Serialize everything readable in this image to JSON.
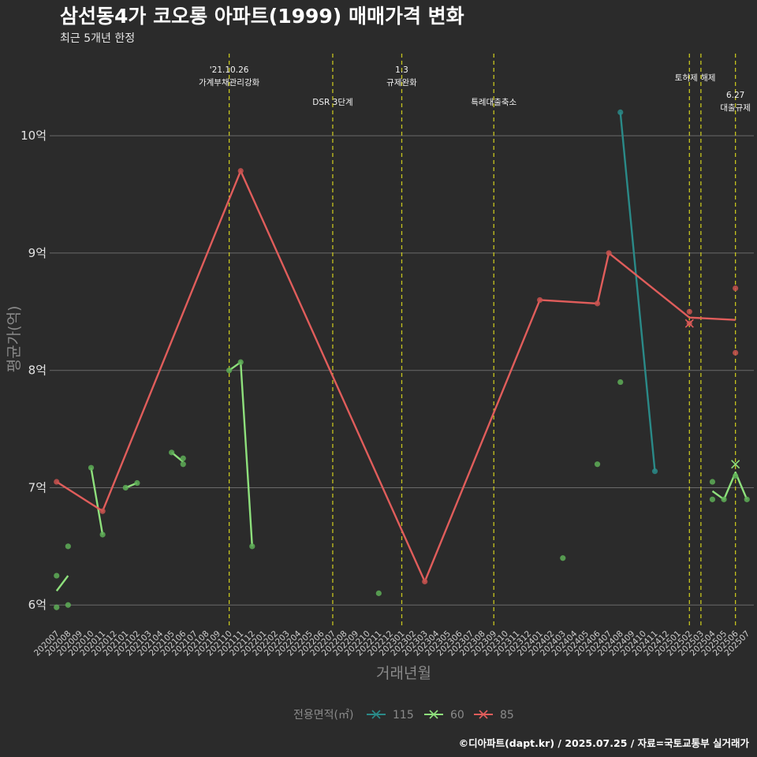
{
  "chart_data": {
    "type": "line",
    "title": "삼선동4가 코오롱 아파트(1999) 매매가격 변화",
    "subtitle": "최근 5개년 한정",
    "xlabel": "거래년월",
    "ylabel": "평균가(억)",
    "caption": "©디아파트(dapt.kr) / 2025.07.25 / 자료=국토교통부 실거래가",
    "ylim": [
      5.8,
      10.7
    ],
    "yticks": [
      6,
      7,
      8,
      9,
      10
    ],
    "ytick_labels": [
      "6억",
      "7억",
      "8억",
      "9억",
      "10억"
    ],
    "categories": [
      "202007",
      "202008",
      "202009",
      "202010",
      "202011",
      "202012",
      "202101",
      "202102",
      "202103",
      "202104",
      "202105",
      "202106",
      "202107",
      "202108",
      "202109",
      "202110",
      "202111",
      "202112",
      "202201",
      "202202",
      "202203",
      "202204",
      "202205",
      "202206",
      "202207",
      "202208",
      "202209",
      "202210",
      "202211",
      "202212",
      "202301",
      "202302",
      "202303",
      "202304",
      "202305",
      "202306",
      "202307",
      "202308",
      "202309",
      "202310",
      "202311",
      "202312",
      "202401",
      "202402",
      "202403",
      "202404",
      "202405",
      "202406",
      "202407",
      "202408",
      "202409",
      "202410",
      "202411",
      "202412",
      "202501",
      "202502",
      "202503",
      "202504",
      "202505",
      "202506",
      "202507"
    ],
    "legend": {
      "title": "전용면적(㎡)",
      "items": [
        {
          "label": "115",
          "color": "#2a8a88"
        },
        {
          "label": "60",
          "color": "#8ee07c"
        },
        {
          "label": "85",
          "color": "#e05d5b"
        }
      ]
    },
    "series": [
      {
        "name": "115",
        "color": "#2a8a88",
        "lines": [
          [
            [
              "202408",
              10.2
            ],
            [
              "202411",
              7.14
            ]
          ]
        ],
        "points": [
          [
            "202408",
            10.2
          ],
          [
            "202411",
            7.14
          ]
        ],
        "crosses": []
      },
      {
        "name": "60",
        "color": "#8ee07c",
        "lines": [
          [
            [
              "202007",
              6.12
            ],
            [
              "202008",
              6.25
            ]
          ],
          [
            [
              "202010",
              7.17
            ],
            [
              "202011",
              6.6
            ]
          ],
          [
            [
              "202101",
              7.0
            ],
            [
              "202102",
              7.04
            ]
          ],
          [
            [
              "202105",
              7.3
            ],
            [
              "202106",
              7.22
            ]
          ],
          [
            [
              "202110",
              8.0
            ],
            [
              "202111",
              8.07
            ],
            [
              "202112",
              6.5
            ]
          ],
          [
            [
              "202504",
              6.97
            ],
            [
              "202505",
              6.9
            ],
            [
              "202506",
              7.13
            ],
            [
              "202507",
              6.9
            ]
          ]
        ],
        "points": [
          [
            "202007",
            6.25
          ],
          [
            "202007",
            5.98
          ],
          [
            "202008",
            6.0
          ],
          [
            "202008",
            6.5
          ],
          [
            "202010",
            7.17
          ],
          [
            "202011",
            6.6
          ],
          [
            "202101",
            7.0
          ],
          [
            "202102",
            7.04
          ],
          [
            "202105",
            7.3
          ],
          [
            "202106",
            7.25
          ],
          [
            "202106",
            7.2
          ],
          [
            "202110",
            8.0
          ],
          [
            "202111",
            8.07
          ],
          [
            "202112",
            6.5
          ],
          [
            "202211",
            6.1
          ],
          [
            "202403",
            6.4
          ],
          [
            "202406",
            7.2
          ],
          [
            "202408",
            7.9
          ],
          [
            "202504",
            7.05
          ],
          [
            "202504",
            6.9
          ],
          [
            "202505",
            6.9
          ],
          [
            "202506",
            7.1
          ],
          [
            "202507",
            6.9
          ]
        ],
        "crosses": [
          [
            "202506",
            7.2
          ]
        ]
      },
      {
        "name": "85",
        "color": "#e05d5b",
        "lines": [
          [
            [
              "202007",
              7.05
            ],
            [
              "202011",
              6.8
            ],
            [
              "202111",
              9.7
            ],
            [
              "202303",
              6.2
            ],
            [
              "202401",
              8.6
            ],
            [
              "202406",
              8.57
            ],
            [
              "202407",
              9.0
            ],
            [
              "202502",
              8.45
            ],
            [
              "202506",
              8.43
            ]
          ]
        ],
        "points": [
          [
            "202007",
            7.05
          ],
          [
            "202011",
            6.8
          ],
          [
            "202111",
            9.7
          ],
          [
            "202303",
            6.2
          ],
          [
            "202401",
            8.6
          ],
          [
            "202406",
            8.57
          ],
          [
            "202407",
            9.0
          ],
          [
            "202502",
            8.5
          ],
          [
            "202502",
            8.4
          ],
          [
            "202506",
            8.7
          ],
          [
            "202506",
            8.15
          ]
        ],
        "crosses": [
          [
            "202502",
            8.4
          ]
        ]
      }
    ],
    "vlines": [
      {
        "at": "202110",
        "label_lines": [
          "'21.10.26",
          "가계부채관리강화"
        ],
        "level": 1
      },
      {
        "at": "202207",
        "label_lines": [
          "DSR 3단계"
        ],
        "level": 3
      },
      {
        "at": "202301",
        "label_lines": [
          "1.3",
          "규제완화"
        ],
        "level": 1
      },
      {
        "at": "202309",
        "label_lines": [
          "특례대출축소"
        ],
        "level": 3
      },
      {
        "at": "202502",
        "label_lines": [
          "토허제 해제"
        ],
        "level": 2,
        "shift": 0.5
      },
      {
        "at": "202503",
        "label_lines": [],
        "level": 2
      },
      {
        "at": "202506",
        "label_lines": [
          "6.27",
          "대출규제"
        ],
        "level": 4
      }
    ]
  }
}
